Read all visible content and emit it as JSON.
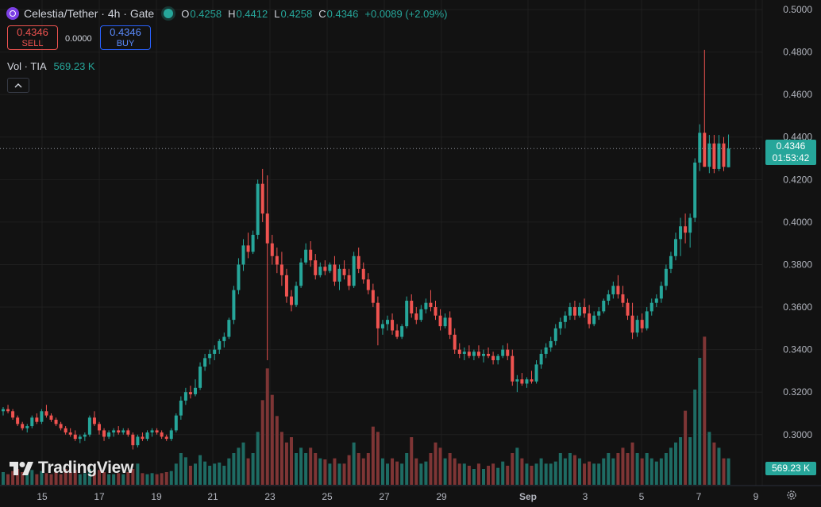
{
  "header": {
    "symbol": "Celestia/Tether",
    "interval": "4h",
    "exchange": "Gate",
    "title_text": "Celestia/Tether · 4h · Gate",
    "open_label": "O",
    "open_value": "0.4258",
    "high_label": "H",
    "high_value": "0.4412",
    "low_label": "L",
    "low_value": "0.4258",
    "close_label": "C",
    "close_value": "0.4346",
    "change": "+0.0089 (+2.09%)"
  },
  "trade": {
    "sell_price": "0.4346",
    "sell_label": "SELL",
    "spread": "0.0000",
    "buy_price": "0.4346",
    "buy_label": "BUY"
  },
  "volume_legend": {
    "label": "Vol · TIA",
    "value": "569.23 K"
  },
  "price_tag": {
    "price": "0.4346",
    "countdown": "01:53:42"
  },
  "volume_tag": "569.23 K",
  "logo_text": "TradingView",
  "icons": {
    "coin": "celestia-coin-icon",
    "status": "market-status-dot-icon",
    "collapse": "chevron-up-icon",
    "logo": "tradingview-logo-icon",
    "settings": "gear-icon"
  },
  "colors": {
    "background": "#121212",
    "up": "#26a69a",
    "down": "#ef5350",
    "vol_up": "#1e6b63",
    "vol_down": "#7e3535",
    "buy": "#2962ff"
  },
  "chart_data": {
    "type": "candlestick",
    "y_axis_ticks": [
      "0.5000",
      "0.4800",
      "0.4600",
      "0.4400",
      "0.4200",
      "0.4000",
      "0.3800",
      "0.3600",
      "0.3400",
      "0.3200",
      "0.3000"
    ],
    "ylim": [
      0.2805,
      0.5015
    ],
    "x_axis_ticks": [
      "15",
      "17",
      "19",
      "21",
      "23",
      "25",
      "27",
      "29",
      "Sep",
      "3",
      "5",
      "7",
      "9"
    ],
    "last_price": 0.4346,
    "volume_ylim": [
      0,
      1200
    ],
    "grid": true,
    "candles": [
      [
        0.311,
        0.313,
        0.309,
        0.312,
        120
      ],
      [
        0.312,
        0.314,
        0.31,
        0.311,
        100
      ],
      [
        0.311,
        0.312,
        0.307,
        0.308,
        130
      ],
      [
        0.308,
        0.309,
        0.304,
        0.305,
        150
      ],
      [
        0.305,
        0.306,
        0.302,
        0.303,
        120
      ],
      [
        0.303,
        0.305,
        0.301,
        0.304,
        110
      ],
      [
        0.304,
        0.309,
        0.303,
        0.308,
        140
      ],
      [
        0.308,
        0.31,
        0.305,
        0.306,
        100
      ],
      [
        0.306,
        0.312,
        0.305,
        0.311,
        130
      ],
      [
        0.311,
        0.314,
        0.308,
        0.309,
        110
      ],
      [
        0.309,
        0.31,
        0.306,
        0.307,
        100
      ],
      [
        0.307,
        0.308,
        0.304,
        0.305,
        120
      ],
      [
        0.305,
        0.306,
        0.302,
        0.303,
        100
      ],
      [
        0.303,
        0.304,
        0.3,
        0.301,
        150
      ],
      [
        0.301,
        0.303,
        0.299,
        0.3,
        120
      ],
      [
        0.3,
        0.302,
        0.297,
        0.298,
        140
      ],
      [
        0.298,
        0.3,
        0.296,
        0.299,
        100
      ],
      [
        0.299,
        0.301,
        0.297,
        0.3,
        110
      ],
      [
        0.3,
        0.309,
        0.299,
        0.308,
        150
      ],
      [
        0.308,
        0.311,
        0.304,
        0.305,
        110
      ],
      [
        0.305,
        0.306,
        0.3,
        0.302,
        140
      ],
      [
        0.302,
        0.303,
        0.297,
        0.299,
        120
      ],
      [
        0.299,
        0.302,
        0.298,
        0.301,
        100
      ],
      [
        0.301,
        0.303,
        0.299,
        0.302,
        100
      ],
      [
        0.302,
        0.304,
        0.3,
        0.301,
        110
      ],
      [
        0.301,
        0.303,
        0.3,
        0.302,
        100
      ],
      [
        0.302,
        0.303,
        0.299,
        0.3,
        120
      ],
      [
        0.3,
        0.301,
        0.293,
        0.295,
        150
      ],
      [
        0.295,
        0.3,
        0.294,
        0.299,
        200
      ],
      [
        0.299,
        0.301,
        0.297,
        0.298,
        110
      ],
      [
        0.298,
        0.302,
        0.297,
        0.301,
        100
      ],
      [
        0.301,
        0.303,
        0.299,
        0.302,
        110
      ],
      [
        0.302,
        0.303,
        0.3,
        0.301,
        100
      ],
      [
        0.301,
        0.302,
        0.298,
        0.299,
        110
      ],
      [
        0.299,
        0.3,
        0.297,
        0.298,
        120
      ],
      [
        0.298,
        0.303,
        0.297,
        0.302,
        130
      ],
      [
        0.302,
        0.31,
        0.301,
        0.309,
        200
      ],
      [
        0.309,
        0.318,
        0.307,
        0.316,
        300
      ],
      [
        0.316,
        0.322,
        0.314,
        0.32,
        260
      ],
      [
        0.32,
        0.323,
        0.317,
        0.319,
        180
      ],
      [
        0.319,
        0.326,
        0.318,
        0.322,
        200
      ],
      [
        0.322,
        0.334,
        0.321,
        0.332,
        280
      ],
      [
        0.332,
        0.338,
        0.33,
        0.336,
        220
      ],
      [
        0.336,
        0.34,
        0.333,
        0.338,
        180
      ],
      [
        0.338,
        0.342,
        0.335,
        0.34,
        200
      ],
      [
        0.34,
        0.345,
        0.338,
        0.344,
        210
      ],
      [
        0.344,
        0.348,
        0.341,
        0.346,
        180
      ],
      [
        0.346,
        0.355,
        0.345,
        0.354,
        250
      ],
      [
        0.354,
        0.37,
        0.352,
        0.368,
        300
      ],
      [
        0.368,
        0.383,
        0.366,
        0.38,
        350
      ],
      [
        0.38,
        0.392,
        0.377,
        0.389,
        400
      ],
      [
        0.389,
        0.395,
        0.383,
        0.386,
        250
      ],
      [
        0.386,
        0.396,
        0.385,
        0.394,
        300
      ],
      [
        0.394,
        0.42,
        0.392,
        0.418,
        500
      ],
      [
        0.418,
        0.425,
        0.4,
        0.404,
        800
      ],
      [
        0.404,
        0.422,
        0.335,
        0.39,
        1100
      ],
      [
        0.39,
        0.394,
        0.38,
        0.384,
        850
      ],
      [
        0.384,
        0.388,
        0.376,
        0.38,
        650
      ],
      [
        0.38,
        0.386,
        0.37,
        0.375,
        500
      ],
      [
        0.375,
        0.378,
        0.362,
        0.365,
        400
      ],
      [
        0.365,
        0.368,
        0.358,
        0.361,
        450
      ],
      [
        0.361,
        0.372,
        0.36,
        0.37,
        300
      ],
      [
        0.37,
        0.383,
        0.369,
        0.381,
        350
      ],
      [
        0.381,
        0.39,
        0.38,
        0.387,
        300
      ],
      [
        0.387,
        0.391,
        0.379,
        0.382,
        350
      ],
      [
        0.382,
        0.385,
        0.373,
        0.375,
        300
      ],
      [
        0.375,
        0.381,
        0.374,
        0.379,
        250
      ],
      [
        0.379,
        0.382,
        0.375,
        0.377,
        240
      ],
      [
        0.377,
        0.381,
        0.376,
        0.38,
        200
      ],
      [
        0.38,
        0.384,
        0.37,
        0.372,
        250
      ],
      [
        0.372,
        0.38,
        0.368,
        0.378,
        200
      ],
      [
        0.378,
        0.382,
        0.373,
        0.375,
        200
      ],
      [
        0.375,
        0.378,
        0.368,
        0.37,
        280
      ],
      [
        0.37,
        0.386,
        0.369,
        0.384,
        400
      ],
      [
        0.384,
        0.388,
        0.376,
        0.378,
        300
      ],
      [
        0.378,
        0.381,
        0.371,
        0.373,
        250
      ],
      [
        0.373,
        0.376,
        0.366,
        0.368,
        300
      ],
      [
        0.368,
        0.371,
        0.36,
        0.362,
        550
      ],
      [
        0.362,
        0.365,
        0.342,
        0.35,
        500
      ],
      [
        0.35,
        0.354,
        0.347,
        0.352,
        250
      ],
      [
        0.352,
        0.356,
        0.349,
        0.354,
        200
      ],
      [
        0.354,
        0.357,
        0.347,
        0.349,
        250
      ],
      [
        0.349,
        0.352,
        0.345,
        0.346,
        220
      ],
      [
        0.346,
        0.352,
        0.345,
        0.351,
        200
      ],
      [
        0.351,
        0.365,
        0.35,
        0.363,
        300
      ],
      [
        0.363,
        0.366,
        0.355,
        0.357,
        450
      ],
      [
        0.357,
        0.36,
        0.352,
        0.354,
        250
      ],
      [
        0.354,
        0.361,
        0.353,
        0.359,
        200
      ],
      [
        0.359,
        0.364,
        0.357,
        0.362,
        220
      ],
      [
        0.362,
        0.368,
        0.358,
        0.36,
        300
      ],
      [
        0.36,
        0.363,
        0.354,
        0.356,
        400
      ],
      [
        0.356,
        0.359,
        0.349,
        0.351,
        350
      ],
      [
        0.351,
        0.357,
        0.35,
        0.355,
        250
      ],
      [
        0.355,
        0.358,
        0.345,
        0.347,
        300
      ],
      [
        0.347,
        0.35,
        0.338,
        0.34,
        250
      ],
      [
        0.34,
        0.343,
        0.336,
        0.338,
        200
      ],
      [
        0.338,
        0.341,
        0.335,
        0.339,
        200
      ],
      [
        0.339,
        0.342,
        0.336,
        0.337,
        180
      ],
      [
        0.337,
        0.34,
        0.335,
        0.339,
        150
      ],
      [
        0.339,
        0.342,
        0.336,
        0.337,
        200
      ],
      [
        0.337,
        0.34,
        0.334,
        0.338,
        150
      ],
      [
        0.338,
        0.341,
        0.336,
        0.337,
        180
      ],
      [
        0.337,
        0.339,
        0.333,
        0.335,
        200
      ],
      [
        0.335,
        0.338,
        0.333,
        0.337,
        160
      ],
      [
        0.337,
        0.342,
        0.336,
        0.34,
        220
      ],
      [
        0.34,
        0.343,
        0.335,
        0.337,
        180
      ],
      [
        0.337,
        0.34,
        0.323,
        0.325,
        300
      ],
      [
        0.325,
        0.328,
        0.32,
        0.326,
        350
      ],
      [
        0.326,
        0.329,
        0.323,
        0.324,
        250
      ],
      [
        0.324,
        0.327,
        0.322,
        0.326,
        200
      ],
      [
        0.326,
        0.33,
        0.324,
        0.325,
        180
      ],
      [
        0.325,
        0.335,
        0.324,
        0.333,
        200
      ],
      [
        0.333,
        0.34,
        0.331,
        0.338,
        250
      ],
      [
        0.338,
        0.343,
        0.336,
        0.341,
        200
      ],
      [
        0.341,
        0.346,
        0.339,
        0.344,
        200
      ],
      [
        0.344,
        0.352,
        0.342,
        0.35,
        220
      ],
      [
        0.35,
        0.355,
        0.347,
        0.353,
        300
      ],
      [
        0.353,
        0.358,
        0.35,
        0.356,
        250
      ],
      [
        0.356,
        0.362,
        0.354,
        0.36,
        300
      ],
      [
        0.36,
        0.363,
        0.354,
        0.356,
        280
      ],
      [
        0.356,
        0.362,
        0.355,
        0.36,
        250
      ],
      [
        0.36,
        0.364,
        0.355,
        0.357,
        200
      ],
      [
        0.357,
        0.361,
        0.35,
        0.352,
        220
      ],
      [
        0.352,
        0.358,
        0.351,
        0.356,
        200
      ],
      [
        0.356,
        0.36,
        0.354,
        0.358,
        200
      ],
      [
        0.358,
        0.364,
        0.357,
        0.363,
        250
      ],
      [
        0.363,
        0.368,
        0.361,
        0.366,
        300
      ],
      [
        0.366,
        0.372,
        0.364,
        0.37,
        250
      ],
      [
        0.37,
        0.375,
        0.364,
        0.366,
        300
      ],
      [
        0.366,
        0.37,
        0.36,
        0.362,
        350
      ],
      [
        0.362,
        0.364,
        0.354,
        0.356,
        300
      ],
      [
        0.356,
        0.362,
        0.345,
        0.348,
        400
      ],
      [
        0.348,
        0.356,
        0.346,
        0.354,
        300
      ],
      [
        0.354,
        0.357,
        0.348,
        0.35,
        250
      ],
      [
        0.35,
        0.36,
        0.349,
        0.358,
        300
      ],
      [
        0.358,
        0.364,
        0.356,
        0.362,
        250
      ],
      [
        0.362,
        0.366,
        0.36,
        0.364,
        220
      ],
      [
        0.364,
        0.372,
        0.362,
        0.37,
        250
      ],
      [
        0.37,
        0.38,
        0.368,
        0.378,
        300
      ],
      [
        0.378,
        0.386,
        0.376,
        0.384,
        350
      ],
      [
        0.384,
        0.395,
        0.382,
        0.392,
        400
      ],
      [
        0.392,
        0.402,
        0.384,
        0.398,
        450
      ],
      [
        0.398,
        0.404,
        0.39,
        0.395,
        700
      ],
      [
        0.395,
        0.404,
        0.388,
        0.402,
        450
      ],
      [
        0.402,
        0.43,
        0.4,
        0.428,
        900
      ],
      [
        0.428,
        0.446,
        0.424,
        0.442,
        1200
      ],
      [
        0.442,
        0.481,
        0.426,
        0.426,
        1400
      ],
      [
        0.426,
        0.441,
        0.423,
        0.437,
        500
      ],
      [
        0.437,
        0.441,
        0.423,
        0.425,
        400
      ],
      [
        0.425,
        0.441,
        0.424,
        0.437,
        350
      ],
      [
        0.437,
        0.44,
        0.424,
        0.426,
        250
      ],
      [
        0.4258,
        0.4412,
        0.4258,
        0.4346,
        250
      ]
    ]
  }
}
